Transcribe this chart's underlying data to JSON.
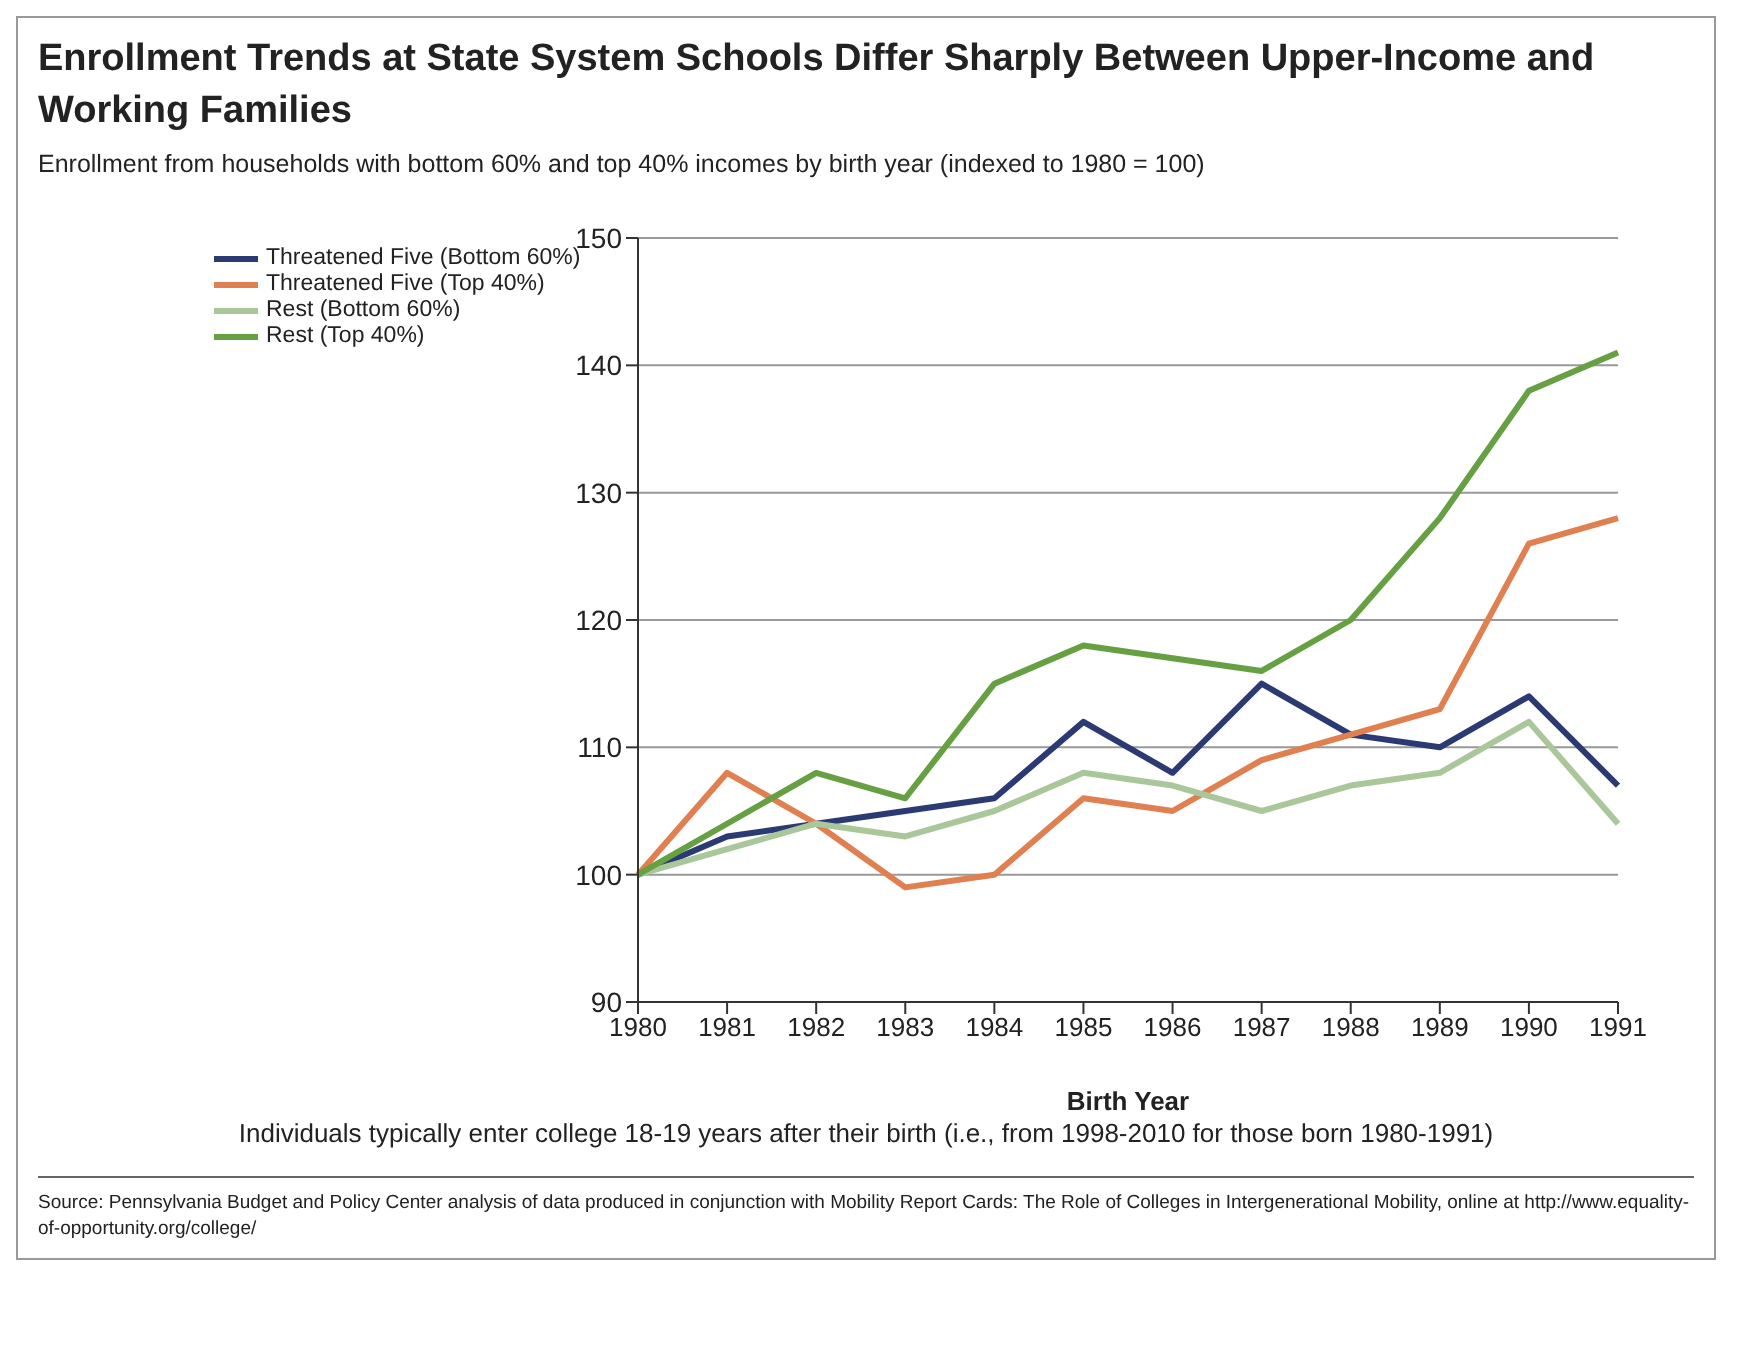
{
  "chart_data": {
    "type": "line",
    "title": "Enrollment Trends at State System Schools Differ Sharply Between Upper-Income and Working Families",
    "subtitle": "Enrollment from households with bottom 60% and top 40% incomes by birth year (indexed to 1980 = 100)",
    "xlabel": "Birth Year",
    "categories": [
      "1980",
      "1981",
      "1982",
      "1983",
      "1984",
      "1985",
      "1986",
      "1987",
      "1988",
      "1989",
      "1990",
      "1991"
    ],
    "series": [
      {
        "name": "Threatened Five (Bottom 60%)",
        "color": "#2b3a73",
        "values": [
          100,
          103,
          104,
          105,
          106,
          112,
          108,
          115,
          111,
          110,
          114,
          107
        ]
      },
      {
        "name": "Threatened Five (Top 40%)",
        "color": "#e07f4f",
        "values": [
          100,
          108,
          104,
          99,
          100,
          106,
          105,
          109,
          111,
          113,
          126,
          128
        ]
      },
      {
        "name": "Rest (Bottom 60%)",
        "color": "#a9c79a",
        "values": [
          100,
          102,
          104,
          103,
          105,
          108,
          107,
          105,
          107,
          108,
          112,
          104
        ]
      },
      {
        "name": "Rest (Top 40%)",
        "color": "#66a043",
        "values": [
          100,
          104,
          108,
          106,
          115,
          118,
          117,
          116,
          120,
          128,
          138,
          141
        ]
      }
    ],
    "ylim": [
      90,
      150
    ],
    "yticks": [
      90,
      100,
      110,
      120,
      130,
      140,
      150
    ],
    "grid": "y",
    "legend": "top left",
    "marker": "none",
    "line_style": "solid",
    "annotations": [
      "Individuals typically enter college 18-19 years after their birth (i.e., from 1998-2010 for those born 1980-1991)",
      "Source: Pennsylvania Budget and Policy Center analysis of data produced in conjunction with Mobility Report Cards: The Role of Colleges in Intergenerational Mobility, online at http://www.equality-of-opportunity.org/college/"
    ]
  }
}
